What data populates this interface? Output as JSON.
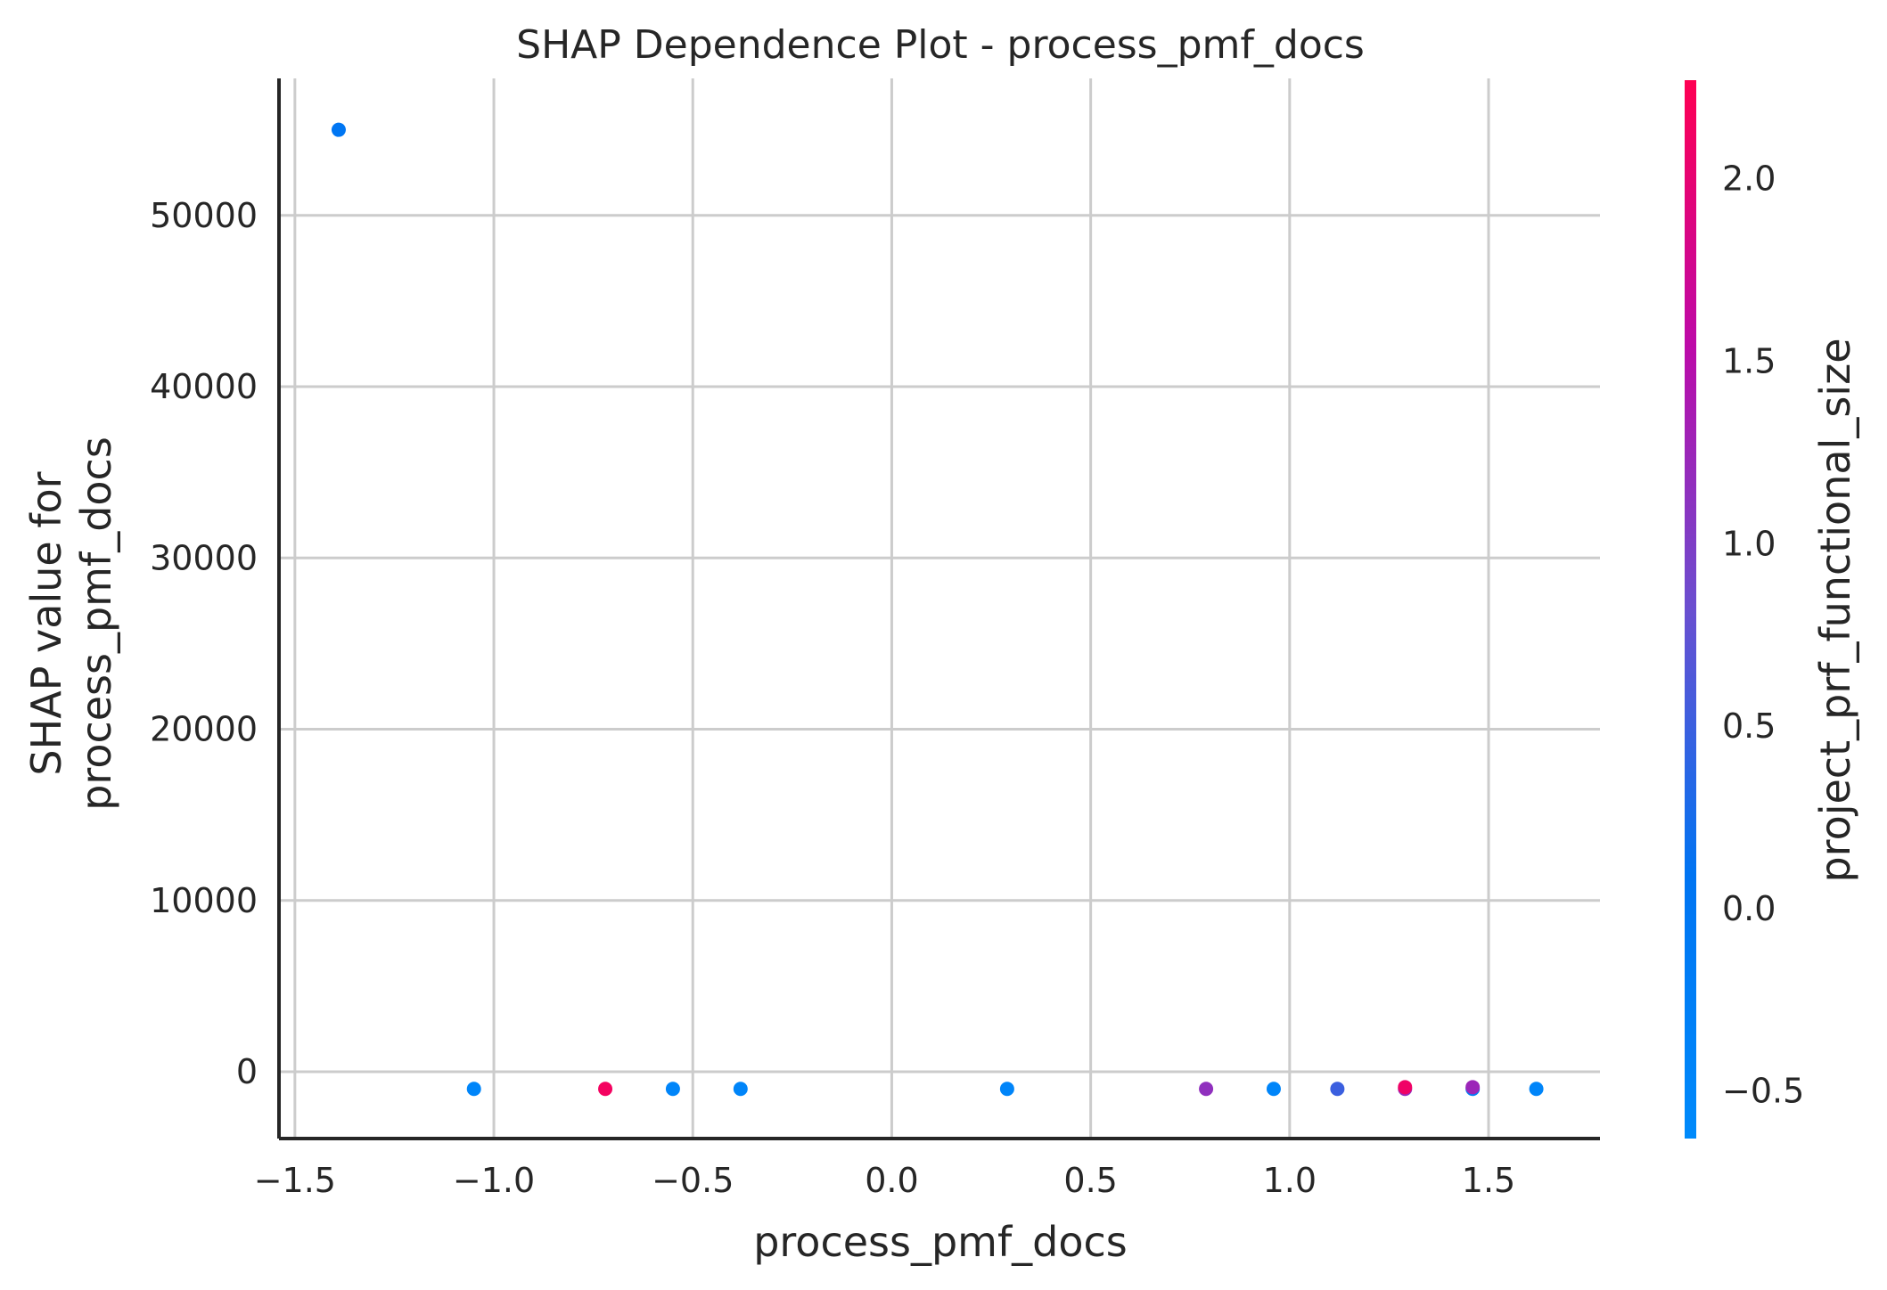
{
  "chart_data": {
    "type": "scatter",
    "title": "SHAP Dependence Plot - process_pmf_docs",
    "xlabel": "process_pmf_docs",
    "ylabel_line1": "SHAP value for",
    "ylabel_line2": "process_pmf_docs",
    "xlim": [
      -1.54,
      1.78
    ],
    "ylim": [
      -3900,
      58000
    ],
    "xticks": [
      -1.5,
      -1.0,
      -0.5,
      0.0,
      0.5,
      1.0,
      1.5
    ],
    "xtick_labels": [
      "−1.5",
      "−1.0",
      "−0.5",
      "0.0",
      "0.5",
      "1.0",
      "1.5"
    ],
    "yticks": [
      0,
      10000,
      20000,
      30000,
      40000,
      50000
    ],
    "ytick_labels": [
      "0",
      "10000",
      "20000",
      "30000",
      "40000",
      "50000"
    ],
    "grid": true,
    "colorbar": {
      "label": "project_prf_functional_size",
      "range": [
        -0.63,
        2.27
      ],
      "ticks": [
        -0.5,
        0.0,
        0.5,
        1.0,
        1.5,
        2.0
      ],
      "tick_labels": [
        "−0.5",
        "0.0",
        "0.5",
        "1.0",
        "1.5",
        "2.0"
      ],
      "colormap": [
        "#008afb",
        "#0074f2",
        "#6a4fd0",
        "#bd0aa8",
        "#ff0052"
      ]
    },
    "points": [
      {
        "x": -1.39,
        "y": 55000,
        "c": 0.03
      },
      {
        "x": -1.05,
        "y": -1000,
        "c": -0.45
      },
      {
        "x": -0.72,
        "y": -1000,
        "c": 2.15
      },
      {
        "x": -0.55,
        "y": -1000,
        "c": -0.45
      },
      {
        "x": -0.38,
        "y": -1000,
        "c": -0.45
      },
      {
        "x": 0.29,
        "y": -1000,
        "c": -0.45
      },
      {
        "x": 0.79,
        "y": -1000,
        "c": 1.15
      },
      {
        "x": 0.96,
        "y": -1000,
        "c": -0.45
      },
      {
        "x": 1.12,
        "y": -1000,
        "c": 0.5
      },
      {
        "x": 1.29,
        "y": -1000,
        "c": 1.2
      },
      {
        "x": 1.29,
        "y": -900,
        "c": 2.1
      },
      {
        "x": 1.46,
        "y": -1000,
        "c": -0.3
      },
      {
        "x": 1.46,
        "y": -900,
        "c": 1.25
      },
      {
        "x": 1.62,
        "y": -1000,
        "c": -0.45
      }
    ]
  }
}
